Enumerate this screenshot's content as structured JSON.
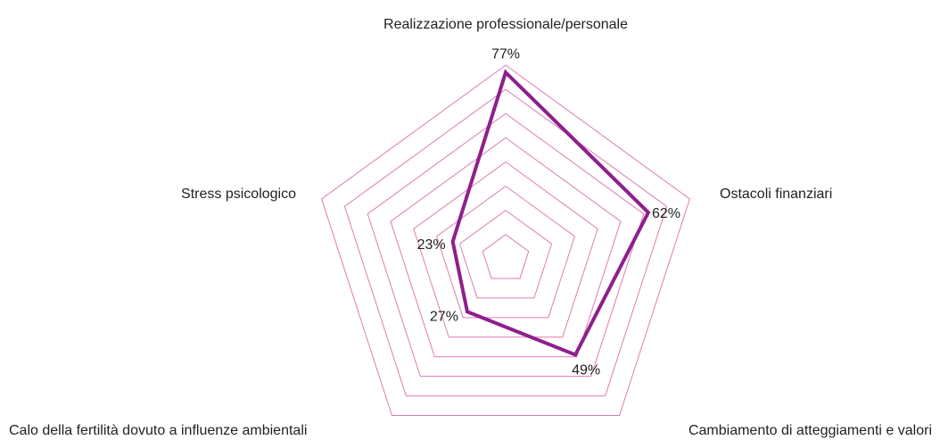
{
  "chart_data": {
    "type": "radar",
    "categories": [
      "Realizzazione professionale/personale",
      "Ostacoli finanziari",
      "Cambiamento di atteggiamenti e valori",
      "Calo della fertilità dovuto a influenze ambientali",
      "Stress psicologico"
    ],
    "values": [
      77,
      62,
      49,
      27,
      23
    ],
    "value_labels": [
      "77%",
      "62%",
      "49%",
      "27%",
      "23%"
    ],
    "color": "#8e1f8c",
    "grid_color": "#e07ab4",
    "rlim": [
      0,
      80
    ],
    "rticks": [
      10,
      20,
      30,
      40,
      50,
      60,
      70,
      80
    ]
  }
}
